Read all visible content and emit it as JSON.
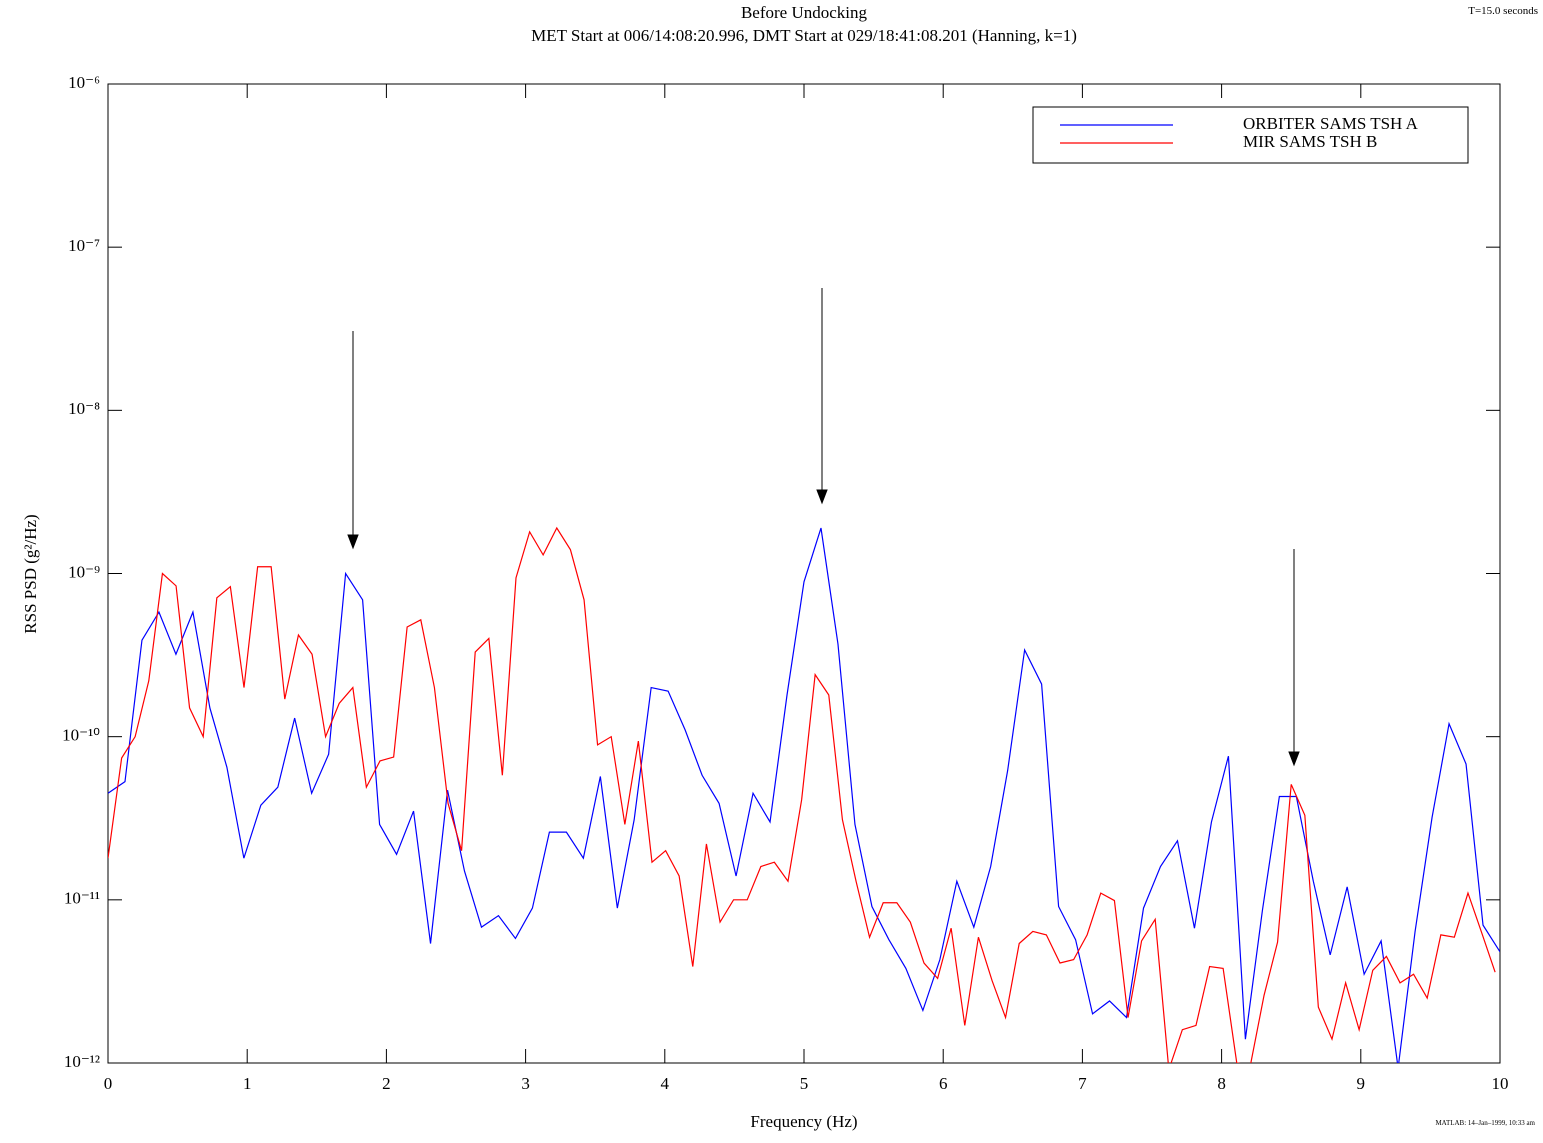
{
  "chart_data": {
    "type": "line",
    "title": "Before Undocking",
    "subtitle": "MET Start at 006/14:08:20.996, DMT Start at 029/18:41:08.201 (Hanning, k=1)",
    "corner_note": "T=15.0 seconds",
    "footer_note": "MATLAB: 14–Jan–1999, 10:33 am",
    "x_label": "Frequency (Hz)",
    "y_label": "RSS PSD (g²/Hz)",
    "xlim": [
      0,
      10
    ],
    "xticks": [
      0,
      1,
      2,
      3,
      4,
      5,
      6,
      7,
      8,
      9,
      10
    ],
    "ylim": [
      1e-12,
      1e-06
    ],
    "yticks": [
      {
        "value": 1e-12,
        "label": "10⁻¹²"
      },
      {
        "value": 1e-11,
        "label": "10⁻¹¹"
      },
      {
        "value": 1e-10,
        "label": "10⁻¹⁰"
      },
      {
        "value": 1e-09,
        "label": "10⁻⁹"
      },
      {
        "value": 1e-08,
        "label": "10⁻⁸"
      },
      {
        "value": 1e-07,
        "label": "10⁻⁷"
      },
      {
        "value": 1e-06,
        "label": "10⁻⁶"
      }
    ],
    "y_scale": "log",
    "grid": false,
    "legend_position": "upper right",
    "series": [
      {
        "name": "ORBITER SAMS TSH A",
        "color": "#0000ff",
        "x": [
          0,
          0.122,
          0.244,
          0.366,
          0.488,
          0.61,
          0.732,
          0.854,
          0.976,
          1.098,
          1.22,
          1.341,
          1.463,
          1.585,
          1.707,
          1.829,
          1.951,
          2.073,
          2.195,
          2.317,
          2.439,
          2.561,
          2.683,
          2.805,
          2.927,
          3.049,
          3.171,
          3.293,
          3.415,
          3.537,
          3.659,
          3.78,
          3.902,
          4.024,
          4.146,
          4.268,
          4.39,
          4.512,
          4.634,
          4.756,
          4.878,
          5,
          5.122,
          5.244,
          5.366,
          5.488,
          5.61,
          5.732,
          5.854,
          5.976,
          6.098,
          6.22,
          6.341,
          6.463,
          6.585,
          6.707,
          6.829,
          6.951,
          7.073,
          7.195,
          7.317,
          7.439,
          7.561,
          7.683,
          7.805,
          7.927,
          8.049,
          8.171,
          8.293,
          8.415,
          8.537,
          8.659,
          8.78,
          8.902,
          9.024,
          9.146,
          9.268,
          9.39,
          9.512,
          9.634,
          9.756,
          9.878,
          10
        ],
        "values": [
          4.5e-11,
          5.3e-11,
          3.9e-10,
          5.8e-10,
          3.2e-10,
          5.8e-10,
          1.5e-10,
          6.5e-11,
          1.8e-11,
          3.8e-11,
          4.9e-11,
          1.3e-10,
          4.5e-11,
          7.8e-11,
          1e-09,
          6.9e-10,
          2.9e-11,
          1.9e-11,
          3.5e-11,
          5.4e-12,
          4.7e-11,
          1.5e-11,
          6.8e-12,
          8e-12,
          5.8e-12,
          8.9e-12,
          2.6e-11,
          2.6e-11,
          1.8e-11,
          5.7e-11,
          8.9e-12,
          3.1e-11,
          2e-10,
          1.9e-10,
          1.1e-10,
          5.8e-11,
          3.9e-11,
          1.4e-11,
          4.5e-11,
          3e-11,
          1.8e-10,
          8.9e-10,
          1.9e-09,
          3.7e-10,
          2.9e-11,
          9.1e-12,
          5.7e-12,
          3.8e-12,
          2.1e-12,
          4.3e-12,
          1.3e-11,
          6.8e-12,
          1.6e-11,
          6.2e-11,
          3.4e-10,
          2.1e-10,
          9.1e-12,
          5.7e-12,
          2e-12,
          2.4e-12,
          1.9e-12,
          8.9e-12,
          1.6e-11,
          2.3e-11,
          6.7e-12,
          3e-11,
          7.6e-11,
          1.4e-12,
          8.6e-12,
          4.3e-11,
          4.3e-11,
          1.3e-11,
          4.6e-12,
          1.2e-11,
          3.5e-12,
          5.6e-12,
          9.3e-13,
          6.4e-12,
          3.2e-11,
          1.2e-10,
          6.8e-11,
          7e-12,
          4.8e-12
        ]
      },
      {
        "name": "MIR SAMS TSH B",
        "color": "#ff0000",
        "x": [
          0,
          0.098,
          0.195,
          0.293,
          0.391,
          0.489,
          0.586,
          0.684,
          0.782,
          0.879,
          0.977,
          1.075,
          1.172,
          1.27,
          1.368,
          1.466,
          1.563,
          1.661,
          1.759,
          1.856,
          1.954,
          2.052,
          2.149,
          2.247,
          2.345,
          2.443,
          2.54,
          2.638,
          2.736,
          2.833,
          2.931,
          3.029,
          3.126,
          3.224,
          3.322,
          3.42,
          3.517,
          3.615,
          3.713,
          3.81,
          3.908,
          4.006,
          4.103,
          4.201,
          4.299,
          4.397,
          4.494,
          4.592,
          4.69,
          4.787,
          4.885,
          4.983,
          5.08,
          5.178,
          5.276,
          5.374,
          5.471,
          5.569,
          5.667,
          5.764,
          5.862,
          5.96,
          6.057,
          6.155,
          6.253,
          6.351,
          6.448,
          6.546,
          6.644,
          6.741,
          6.839,
          6.937,
          7.034,
          7.132,
          7.23,
          7.328,
          7.425,
          7.523,
          7.621,
          7.718,
          7.816,
          7.914,
          8.011,
          8.109,
          8.207,
          8.305,
          8.402,
          8.5,
          8.598,
          8.695,
          8.793,
          8.891,
          8.988,
          9.086,
          9.184,
          9.282,
          9.379,
          9.477,
          9.575,
          9.672,
          9.77,
          9.868,
          9.965
        ],
        "values": [
          1.8e-11,
          7.4e-11,
          1e-10,
          2.2e-10,
          1e-09,
          8.4e-10,
          1.5e-10,
          1e-10,
          7.1e-10,
          8.3e-10,
          2e-10,
          1.1e-09,
          1.1e-09,
          1.7e-10,
          4.2e-10,
          3.2e-10,
          1e-10,
          1.6e-10,
          2e-10,
          4.9e-11,
          7.1e-11,
          7.5e-11,
          4.7e-10,
          5.2e-10,
          2e-10,
          3.9e-11,
          2e-11,
          3.3e-10,
          4e-10,
          5.8e-11,
          9.4e-10,
          1.8e-09,
          1.3e-09,
          1.9e-09,
          1.4e-09,
          6.9e-10,
          8.9e-11,
          1e-10,
          2.9e-11,
          9.4e-11,
          1.7e-11,
          2e-11,
          1.4e-11,
          3.9e-12,
          2.2e-11,
          7.3e-12,
          1e-11,
          1e-11,
          1.6e-11,
          1.7e-11,
          1.3e-11,
          4.1e-11,
          2.4e-10,
          1.8e-10,
          3.1e-11,
          1.3e-11,
          5.9e-12,
          9.6e-12,
          9.6e-12,
          7.3e-12,
          4.1e-12,
          3.3e-12,
          6.7e-12,
          1.7e-12,
          5.9e-12,
          3.2e-12,
          1.9e-12,
          5.4e-12,
          6.4e-12,
          6.1e-12,
          4.1e-12,
          4.3e-12,
          6.1e-12,
          1.1e-11,
          9.9e-12,
          1.9e-12,
          5.6e-12,
          7.6e-12,
          9.1e-13,
          1.6e-12,
          1.7e-12,
          3.9e-12,
          3.8e-12,
          1e-12,
          9.7e-13,
          2.6e-12,
          5.5e-12,
          5.1e-11,
          3.3e-11,
          2.2e-12,
          1.4e-12,
          3.1e-12,
          1.6e-12,
          3.7e-12,
          4.5e-12,
          3.1e-12,
          3.5e-12,
          2.5e-12,
          6.1e-12,
          5.9e-12,
          1.1e-11,
          6.3e-12,
          3.6e-12
        ]
      }
    ]
  }
}
